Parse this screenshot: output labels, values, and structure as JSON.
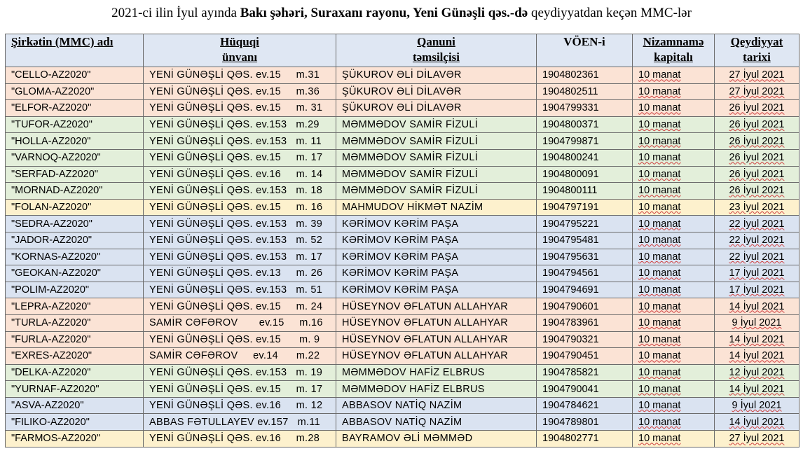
{
  "title": {
    "part1": "2021-ci ilin İyul ayında ",
    "part2": "Bakı şəhəri, Suraxanı rayonu, Yeni Günəşli qəs.-də",
    "part3": " qeydiyyatdan keçən MMC-lər"
  },
  "table": {
    "headers": {
      "company": "Şirkətin (MMC) adı",
      "address_1": "Hüquqi",
      "address_2": "ünvanı",
      "rep_1": "Qanuni",
      "rep_2": "təmsilçisi",
      "voen": "VÖEN-i",
      "capital_1": "Nizamnamə",
      "capital_2": "kapitalı",
      "date_1": "Qeydiyyat",
      "date_2": "tarixi"
    },
    "rows": [
      {
        "color": "salmon",
        "company": "\"CELLO-AZ2020\"",
        "address": "YENİ GÜNƏŞLİ QƏS. ev.15     m.31",
        "rep": "ŞÜKUROV ƏLİ DİLAVƏR",
        "voen": "1904802361",
        "capital": "10 manat",
        "date": "27 İyul 2021"
      },
      {
        "color": "salmon",
        "company": "\"GLOMA-AZ2020\"",
        "address": "YENİ GÜNƏŞLİ QƏS. ev.15     m.36",
        "rep": "ŞÜKUROV ƏLİ DİLAVƏR",
        "voen": "1904802511",
        "capital": "10 manat",
        "date": "27 İyul 2021"
      },
      {
        "color": "salmon",
        "company": "\"ELFOR-AZ2020\"",
        "address": "YENİ GÜNƏŞLİ QƏS. ev.15     m. 31",
        "rep": "ŞÜKUROV ƏLİ DİLAVƏR",
        "voen": "1904799331",
        "capital": "10 manat",
        "date": "26 İyul 2021"
      },
      {
        "color": "green",
        "company": "\"TUFOR-AZ2020\"",
        "address": "YENİ GÜNƏŞLİ QƏS. ev.153   m.29",
        "rep": "MƏMMƏDOV SAMİR FİZULİ",
        "voen": "1904800371",
        "capital": "10 manat",
        "date": "26 İyul 2021"
      },
      {
        "color": "green",
        "company": "\"HOLLA-AZ2020\"",
        "address": "YENİ GÜNƏŞLİ QƏS. ev.153   m. 11",
        "rep": "MƏMMƏDOV SAMİR FİZULİ",
        "voen": "1904799871",
        "capital": "10 manat",
        "date": "26 İyul 2021"
      },
      {
        "color": "green",
        "company": "\"VARNOQ-AZ2020\"",
        "address": "YENİ GÜNƏŞLİ QƏS. ev.15     m. 17",
        "rep": "MƏMMƏDOV SAMİR FİZULİ",
        "voen": "1904800241",
        "capital": "10 manat",
        "date": "26 İyul 2021"
      },
      {
        "color": "green",
        "company": "\"SERFAD-AZ2020\"",
        "address": "YENİ GÜNƏŞLİ QƏS. ev.16     m. 14",
        "rep": "MƏMMƏDOV SAMİR FİZULİ",
        "voen": "1904800091",
        "capital": "10 manat",
        "date": "26 İyul 2021"
      },
      {
        "color": "green",
        "company": "\"MORNAD-AZ2020\"",
        "address": "YENİ GÜNƏŞLİ QƏS. ev.153   m. 18",
        "rep": "MƏMMƏDOV SAMİR FİZULİ",
        "voen": "1904800111",
        "capital": "10 manat",
        "date": "26 İyul 2021"
      },
      {
        "color": "yellow",
        "company": "\"FOLAN-AZ2020\"",
        "address": "YENİ GÜNƏŞLİ QƏS. ev.15     m. 16",
        "rep": "MAHMUDOV HİKMƏT NAZİM",
        "voen": "1904797191",
        "capital": "10 manat",
        "date": "23 İyul 2021"
      },
      {
        "color": "blue",
        "company": "\"SEDRA-AZ2020\"",
        "address": "YENİ GÜNƏŞLİ QƏS. ev.153   m. 39",
        "rep": "KƏRİMOV KƏRİM PAŞA",
        "voen": "1904795221",
        "capital": "10 manat",
        "date": "22 İyul 2021"
      },
      {
        "color": "blue",
        "company": "\"JADOR-AZ2020\"",
        "address": "YENİ GÜNƏŞLİ QƏS. ev.153   m. 52",
        "rep": "KƏRİMOV KƏRİM PAŞA",
        "voen": "1904795481",
        "capital": "10 manat",
        "date": "22 İyul 2021"
      },
      {
        "color": "blue",
        "company": "\"KORNAS-AZ2020\"",
        "address": "YENİ GÜNƏŞLİ QƏS. ev.153   m. 17",
        "rep": "KƏRİMOV KƏRİM PAŞA",
        "voen": "1904795631",
        "capital": "10 manat",
        "date": "22 İyul 2021"
      },
      {
        "color": "blue",
        "company": "\"GEOKAN-AZ2020\"",
        "address": "YENİ GÜNƏŞLİ QƏS. ev.13     m. 26",
        "rep": "KƏRİMOV KƏRİM PAŞA",
        "voen": "1904794561",
        "capital": "10 manat",
        "date": "17 İyul 2021"
      },
      {
        "color": "blue",
        "company": "\"POLIM-AZ2020\"",
        "address": "YENİ GÜNƏŞLİ QƏS. ev.153   m. 51",
        "rep": "KƏRİMOV KƏRİM PAŞA",
        "voen": "1904794691",
        "capital": "10 manat",
        "date": "17 İyul 2021"
      },
      {
        "color": "salmon",
        "company": "\"LEPRA-AZ2020\"",
        "address": "YENİ GÜNƏŞLİ QƏS. ev.15     m. 24",
        "rep": "HÜSEYNOV ƏFLATUN ALLAHYAR",
        "voen": "1904790601",
        "capital": "10 manat",
        "date": "14 İyul 2021"
      },
      {
        "color": "salmon",
        "company": "\"TURLA-AZ2020\"",
        "address": "SAMİR CƏFƏROV       ev.15     m.16",
        "rep": "HÜSEYNOV ƏFLATUN ALLAHYAR",
        "voen": "1904783961",
        "capital": "10 manat",
        "date": "9 İyul 2021"
      },
      {
        "color": "salmon",
        "company": "\"FURLA-AZ2020\"",
        "address": "YENİ GÜNƏŞLİ QƏS. ev.15      m. 9",
        "rep": "HÜSEYNOV ƏFLATUN ALLAHYAR",
        "voen": "1904790321",
        "capital": "10 manat",
        "date": "14 İyul 2021"
      },
      {
        "color": "salmon",
        "company": "\"EXRES-AZ2020\"",
        "address": "SAMİR CƏFƏROV     ev.14      m.22",
        "rep": "HÜSEYNOV ƏFLATUN ALLAHYAR",
        "voen": "1904790451",
        "capital": "10 manat",
        "date": "14 İyul 2021"
      },
      {
        "color": "green",
        "company": "\"DELKA-AZ2020\"",
        "address": "YENİ GÜNƏŞLİ QƏS. ev.153   m. 19",
        "rep": "MƏMMƏDOV HAFİZ ELBRUS",
        "voen": "1904785821",
        "capital": "10 manat",
        "date": "12 İyul 2021"
      },
      {
        "color": "green",
        "company": "\"YURNAF-AZ2020\"",
        "address": "YENİ GÜNƏŞLİ QƏS. ev.15     m. 17",
        "rep": "MƏMMƏDOV HAFİZ ELBRUS",
        "voen": "1904790041",
        "capital": "10 manat",
        "date": "14 İyul 2021"
      },
      {
        "color": "blue",
        "company": "\"ASVA-AZ2020\"",
        "address": "YENİ GÜNƏŞLİ QƏS. ev.16     m. 12",
        "rep": "ABBASOV NATİQ NAZİM",
        "voen": "1904784621",
        "capital": "10 manat",
        "date": "9 İyul 2021"
      },
      {
        "color": "blue",
        "company": "\"FILIKO-AZ2020\"",
        "address": "ABBAS FƏTULLAYEV ev.157   m.11",
        "rep": "ABBASOV NATİQ NAZİM",
        "voen": "1904789801",
        "capital": "10 manat",
        "date": "14 İyul 2021"
      },
      {
        "color": "yellow",
        "company": "\"FARMOS-AZ2020\"",
        "address": "YENİ GÜNƏŞLİ QƏS. ev.16     m.28",
        "rep": "BAYRAMOV ƏLİ MƏMMƏD",
        "voen": "1904802771",
        "capital": "10 manat",
        "date": "27 İyul 2021"
      }
    ]
  }
}
